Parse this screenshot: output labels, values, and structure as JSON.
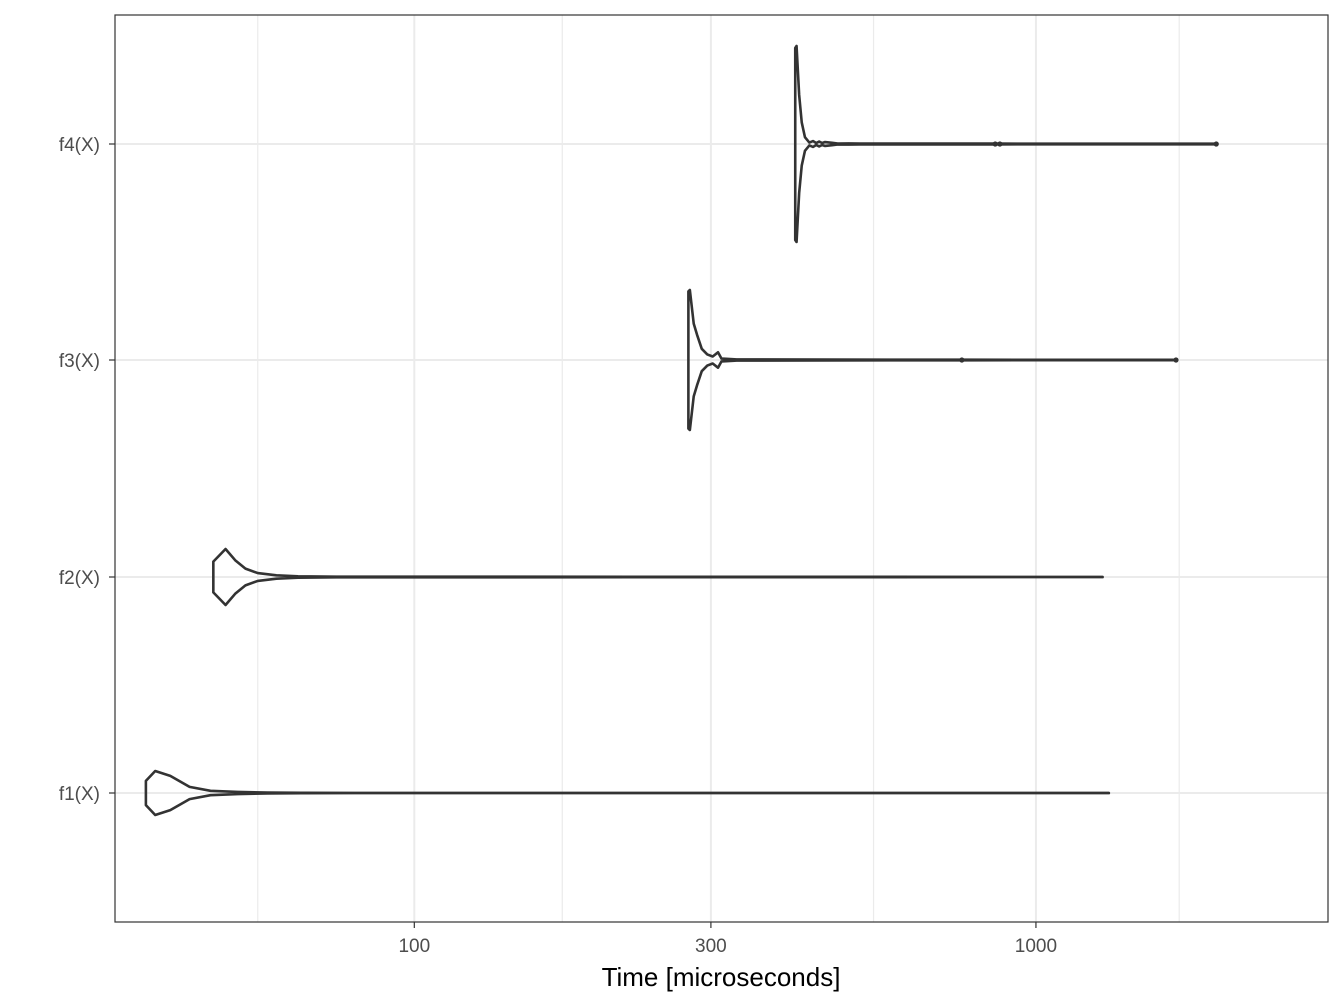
{
  "chart_data": {
    "type": "violin",
    "orientation": "horizontal",
    "xlabel": "Time [microseconds]",
    "ylabel": "",
    "x_scale": "log10",
    "xlim": [
      33,
      2950
    ],
    "x_major_ticks": [
      100,
      300,
      1000
    ],
    "x_minor_ticks": [
      56,
      173,
      548,
      1700
    ],
    "categories": [
      "f1(X)",
      "f2(X)",
      "f3(X)",
      "f4(X)"
    ],
    "grid": true,
    "legend": "none",
    "colors": {
      "line": "#333333",
      "grid": "#ebebeb",
      "panel_border": "#333333",
      "background": "#ffffff"
    },
    "series": [
      {
        "category": "f1(X)",
        "min": 37,
        "max": 1310,
        "density_profile": [
          [
            37,
            0.55
          ],
          [
            38.3,
            1.0
          ],
          [
            40.5,
            0.78
          ],
          [
            43.5,
            0.28
          ],
          [
            47,
            0.1
          ],
          [
            52,
            0.05
          ],
          [
            58,
            0.02
          ],
          [
            66,
            0.012
          ],
          [
            80,
            0.006
          ],
          [
            500,
            0.004
          ],
          [
            1310,
            0.003
          ]
        ]
      },
      {
        "category": "f2(X)",
        "min": 47.5,
        "max": 1280,
        "density_profile": [
          [
            47.5,
            0.55
          ],
          [
            49.7,
            1.0
          ],
          [
            51.5,
            0.6
          ],
          [
            53.5,
            0.3
          ],
          [
            56,
            0.14
          ],
          [
            60,
            0.06
          ],
          [
            65,
            0.025
          ],
          [
            75,
            0.012
          ],
          [
            1280,
            0.003
          ]
        ]
      },
      {
        "category": "f3(X)",
        "min": 276,
        "max": 1680,
        "outliers": [
          760,
          1680
        ],
        "density_profile": [
          [
            276,
            0.98
          ],
          [
            277.5,
            1.0
          ],
          [
            281.5,
            0.52
          ],
          [
            285,
            0.36
          ],
          [
            290,
            0.16
          ],
          [
            296,
            0.08
          ],
          [
            302,
            0.05
          ],
          [
            308,
            0.11
          ],
          [
            312,
            0.02
          ],
          [
            320,
            0.015
          ],
          [
            330,
            0.008
          ],
          [
            760,
            0.004
          ],
          [
            1680,
            0.003
          ]
        ]
      },
      {
        "category": "f4(X)",
        "min": 410,
        "max": 1950,
        "outliers": [
          860,
          875,
          1950
        ],
        "density_profile": [
          [
            410,
            0.98
          ],
          [
            412,
            1.0
          ],
          [
            416,
            0.5
          ],
          [
            420,
            0.22
          ],
          [
            425,
            0.07
          ],
          [
            432,
            0.015
          ],
          [
            438,
            0.03
          ],
          [
            443,
            0.01
          ],
          [
            448,
            0.025
          ],
          [
            453,
            0.01
          ],
          [
            458,
            0.02
          ],
          [
            470,
            0.012
          ],
          [
            480,
            0.005
          ],
          [
            500,
            0.006
          ],
          [
            520,
            0.004
          ],
          [
            860,
            0.004
          ],
          [
            1950,
            0.003
          ]
        ]
      }
    ]
  }
}
